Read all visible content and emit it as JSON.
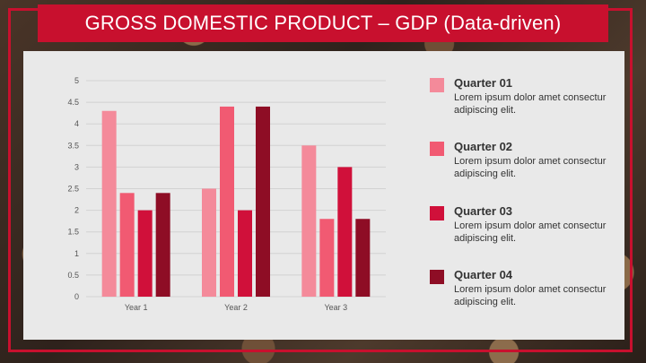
{
  "slide": {
    "title": "GROSS DOMESTIC PRODUCT – GDP (Data-driven)"
  },
  "chart_data": {
    "type": "bar",
    "categories": [
      "Year 1",
      "Year 2",
      "Year 3"
    ],
    "series": [
      {
        "name": "Quarter 01",
        "values": [
          4.3,
          2.5,
          3.5
        ],
        "color": "#f48a9a"
      },
      {
        "name": "Quarter 02",
        "values": [
          2.4,
          4.4,
          1.8
        ],
        "color": "#f15a72"
      },
      {
        "name": "Quarter 03",
        "values": [
          2.0,
          2.0,
          3.0
        ],
        "color": "#d0103a"
      },
      {
        "name": "Quarter 04",
        "values": [
          2.4,
          4.4,
          1.8
        ],
        "color": "#8e0d25"
      }
    ],
    "yticks": [
      "0",
      "0.5",
      "1",
      "1.5",
      "2",
      "2.5",
      "3",
      "3.5",
      "4",
      "4.5",
      "5"
    ],
    "ylim": [
      0,
      5
    ],
    "grid": true,
    "legend_position": "right"
  },
  "legend": {
    "items": [
      {
        "title": "Quarter 01",
        "desc": "Lorem ipsum dolor amet consectur adipiscing elit.",
        "color": "#f48a9a"
      },
      {
        "title": "Quarter 02",
        "desc": "Lorem ipsum dolor amet consectur adipiscing elit.",
        "color": "#f15a72"
      },
      {
        "title": "Quarter 03",
        "desc": "Lorem ipsum dolor amet consectur adipiscing elit.",
        "color": "#d0103a"
      },
      {
        "title": "Quarter 04",
        "desc": "Lorem ipsum dolor amet consectur adipiscing elit.",
        "color": "#8e0d25"
      }
    ]
  }
}
